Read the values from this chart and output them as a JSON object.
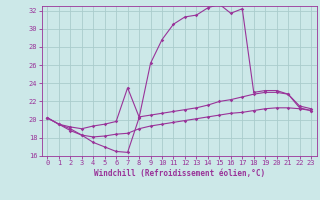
{
  "title": "",
  "xlabel": "Windchill (Refroidissement éolien,°C)",
  "ylabel": "",
  "bg_color": "#cce8e8",
  "grid_color": "#aacccc",
  "line_color": "#993399",
  "xlim": [
    -0.5,
    23.5
  ],
  "ylim": [
    16,
    32.5
  ],
  "xticks": [
    0,
    1,
    2,
    3,
    4,
    5,
    6,
    7,
    8,
    9,
    10,
    11,
    12,
    13,
    14,
    15,
    16,
    17,
    18,
    19,
    20,
    21,
    22,
    23
  ],
  "yticks": [
    16,
    18,
    20,
    22,
    24,
    26,
    28,
    30,
    32
  ],
  "line1_x": [
    0,
    1,
    2,
    3,
    4,
    5,
    6,
    7,
    8,
    9,
    10,
    11,
    12,
    13,
    14,
    15,
    16,
    17,
    18,
    19,
    20,
    21,
    22,
    23
  ],
  "line1_y": [
    20.2,
    19.5,
    19.0,
    18.3,
    17.5,
    17.0,
    16.5,
    16.4,
    20.2,
    26.2,
    28.8,
    30.5,
    31.3,
    31.5,
    32.3,
    32.7,
    31.7,
    32.2,
    23.0,
    23.2,
    23.2,
    22.8,
    21.3,
    21.0
  ],
  "line2_x": [
    0,
    1,
    2,
    3,
    4,
    5,
    6,
    7,
    8,
    9,
    10,
    11,
    12,
    13,
    14,
    15,
    16,
    17,
    18,
    19,
    20,
    21,
    22,
    23
  ],
  "line2_y": [
    20.2,
    19.5,
    19.2,
    19.0,
    19.3,
    19.5,
    19.8,
    23.5,
    20.3,
    20.5,
    20.7,
    20.9,
    21.1,
    21.3,
    21.6,
    22.0,
    22.2,
    22.5,
    22.8,
    23.0,
    23.0,
    22.8,
    21.5,
    21.2
  ],
  "line3_x": [
    0,
    1,
    2,
    3,
    4,
    5,
    6,
    7,
    8,
    9,
    10,
    11,
    12,
    13,
    14,
    15,
    16,
    17,
    18,
    19,
    20,
    21,
    22,
    23
  ],
  "line3_y": [
    20.2,
    19.5,
    18.8,
    18.3,
    18.1,
    18.2,
    18.4,
    18.5,
    19.0,
    19.3,
    19.5,
    19.7,
    19.9,
    20.1,
    20.3,
    20.5,
    20.7,
    20.8,
    21.0,
    21.2,
    21.3,
    21.3,
    21.2,
    21.0
  ],
  "tick_fontsize": 5,
  "xlabel_fontsize": 5.5,
  "marker_size": 1.8,
  "line_width": 0.8
}
